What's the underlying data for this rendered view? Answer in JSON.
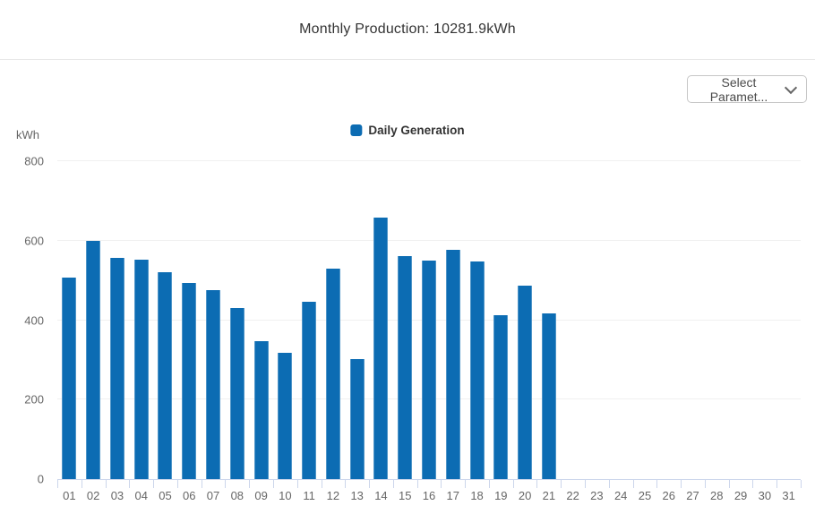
{
  "header": {
    "title": "Monthly Production: 10281.9kWh"
  },
  "toolbar": {
    "select_parameter_label": "Select Paramet..."
  },
  "chart": {
    "unit_label": "kWh",
    "legend_label": "Daily Generation"
  },
  "colors": {
    "bar": "#0c6cb3",
    "axis_line": "#ccd6eb",
    "grid_line": "#f0f0f0",
    "tick_label": "#666666"
  },
  "chart_data": {
    "type": "bar",
    "title": "Monthly Production: 10281.9kWh",
    "categories": [
      "01",
      "02",
      "03",
      "04",
      "05",
      "06",
      "07",
      "08",
      "09",
      "10",
      "11",
      "12",
      "13",
      "14",
      "15",
      "16",
      "17",
      "18",
      "19",
      "20",
      "21",
      "22",
      "23",
      "24",
      "25",
      "26",
      "27",
      "28",
      "29",
      "30",
      "31"
    ],
    "series": [
      {
        "name": "Daily Generation",
        "color": "#0c6cb3",
        "values": [
          506.7,
          599.0,
          556.8,
          551.8,
          519.7,
          493.6,
          474.6,
          430.4,
          346.1,
          318.0,
          445.5,
          528.7,
          302.0,
          657.2,
          560.9,
          549.8,
          576.9,
          547.8,
          411.4,
          487.6,
          417.4,
          null,
          null,
          null,
          null,
          null,
          null,
          null,
          null,
          null,
          null
        ]
      }
    ],
    "xlabel": "",
    "ylabel": "kWh",
    "ylim": [
      0,
      800
    ],
    "y_ticks": [
      0,
      200,
      400,
      600,
      800
    ],
    "grid": true,
    "legend_position": "top-center"
  }
}
